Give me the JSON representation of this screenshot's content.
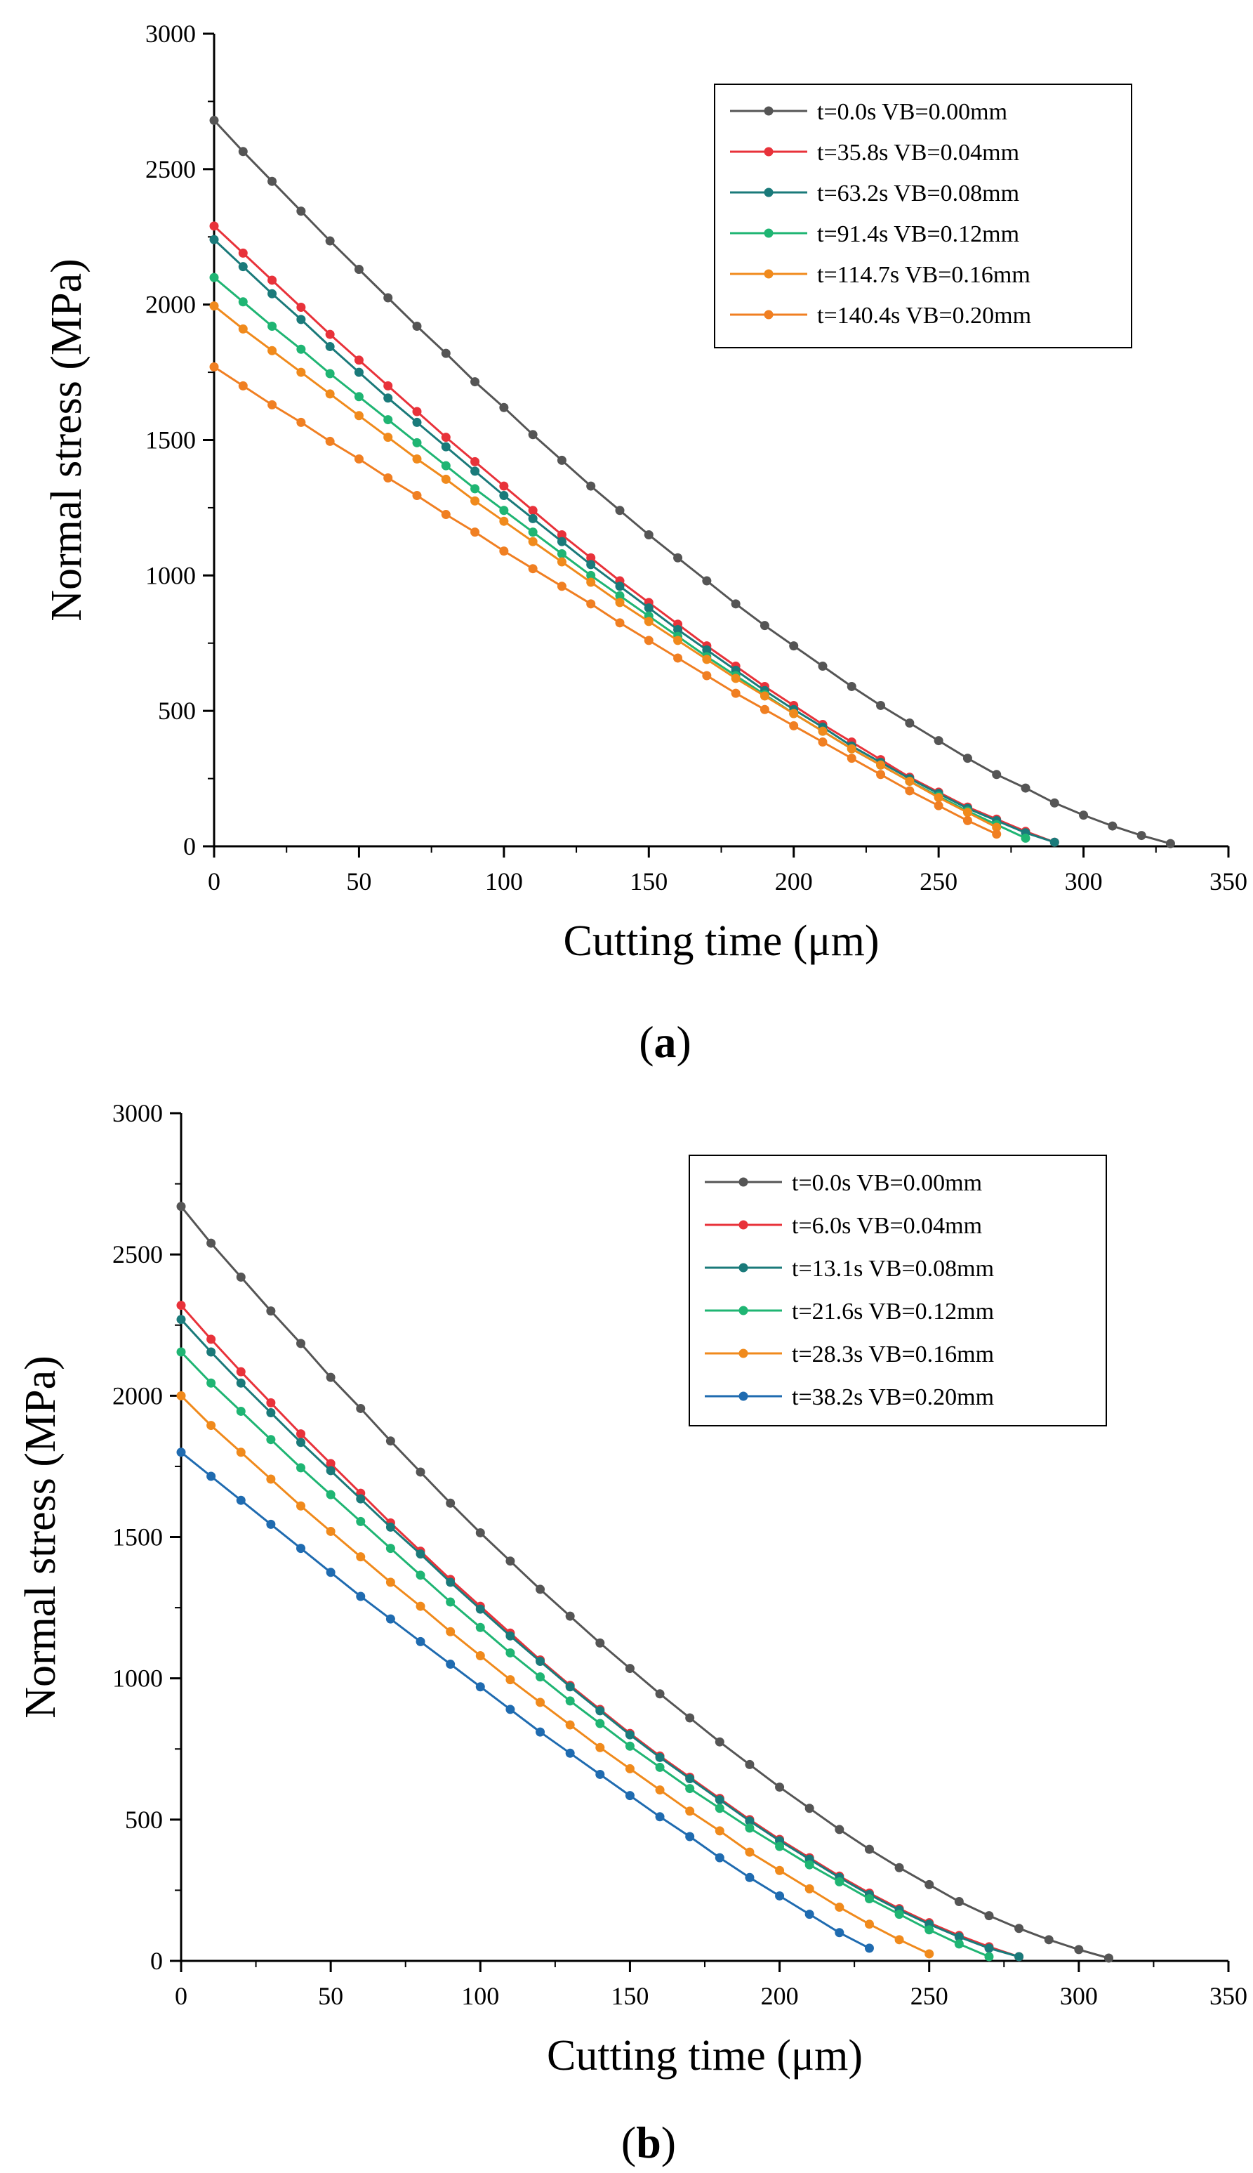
{
  "chart_data": [
    {
      "type": "line",
      "caption_open": "(",
      "caption_letter": "a",
      "caption_close": ")",
      "xlabel": "Cutting time (μm)",
      "ylabel": "Normal stress (MPa)",
      "xlim": [
        0,
        350
      ],
      "ylim": [
        0,
        3000
      ],
      "xticks": [
        0,
        50,
        100,
        150,
        200,
        250,
        300,
        350
      ],
      "yticks": [
        0,
        500,
        1000,
        1500,
        2000,
        2500,
        3000
      ],
      "legend_position": "top-right",
      "series": [
        {
          "name": "t=0.0s VB=0.00mm",
          "color": "#555555",
          "x": [
            0,
            10,
            20,
            30,
            40,
            50,
            60,
            70,
            80,
            90,
            100,
            110,
            120,
            130,
            140,
            150,
            160,
            170,
            180,
            190,
            200,
            210,
            220,
            230,
            240,
            250,
            260,
            270,
            280,
            290,
            300,
            310,
            320,
            330
          ],
          "y": [
            2680,
            2565,
            2455,
            2345,
            2235,
            2130,
            2025,
            1920,
            1820,
            1715,
            1620,
            1520,
            1425,
            1330,
            1240,
            1150,
            1065,
            980,
            895,
            815,
            740,
            665,
            590,
            520,
            455,
            390,
            325,
            265,
            215,
            160,
            115,
            75,
            40,
            10
          ]
        },
        {
          "name": "t=35.8s VB=0.04mm",
          "color": "#e8323a",
          "x": [
            0,
            10,
            20,
            30,
            40,
            50,
            60,
            70,
            80,
            90,
            100,
            110,
            120,
            130,
            140,
            150,
            160,
            170,
            180,
            190,
            200,
            210,
            220,
            230,
            240,
            250,
            260,
            270,
            280,
            290
          ],
          "y": [
            2290,
            2190,
            2090,
            1990,
            1890,
            1795,
            1700,
            1605,
            1510,
            1420,
            1330,
            1240,
            1150,
            1065,
            980,
            900,
            820,
            740,
            665,
            590,
            520,
            450,
            385,
            320,
            255,
            200,
            145,
            100,
            55,
            15
          ]
        },
        {
          "name": "t=63.2s VB=0.08mm",
          "color": "#1a7a7a",
          "x": [
            0,
            10,
            20,
            30,
            40,
            50,
            60,
            70,
            80,
            90,
            100,
            110,
            120,
            130,
            140,
            150,
            160,
            170,
            180,
            190,
            200,
            210,
            220,
            230,
            240,
            250,
            260,
            270,
            280,
            290
          ],
          "y": [
            2240,
            2140,
            2040,
            1945,
            1845,
            1750,
            1655,
            1565,
            1475,
            1385,
            1295,
            1210,
            1125,
            1040,
            960,
            880,
            800,
            725,
            650,
            575,
            505,
            440,
            370,
            310,
            250,
            195,
            140,
            95,
            50,
            15
          ]
        },
        {
          "name": "t=91.4s VB=0.12mm",
          "color": "#1fb573",
          "x": [
            0,
            10,
            20,
            30,
            40,
            50,
            60,
            70,
            80,
            90,
            100,
            110,
            120,
            130,
            140,
            150,
            160,
            170,
            180,
            190,
            200,
            210,
            220,
            230,
            240,
            250,
            260,
            270,
            280
          ],
          "y": [
            2100,
            2010,
            1920,
            1835,
            1745,
            1660,
            1575,
            1490,
            1405,
            1320,
            1240,
            1160,
            1080,
            1000,
            925,
            850,
            775,
            700,
            630,
            560,
            490,
            425,
            360,
            300,
            240,
            185,
            130,
            80,
            30
          ]
        },
        {
          "name": "t=114.7s VB=0.16mm",
          "color": "#f08a1c",
          "x": [
            0,
            10,
            20,
            30,
            40,
            50,
            60,
            70,
            80,
            90,
            100,
            110,
            120,
            130,
            140,
            150,
            160,
            170,
            180,
            190,
            200,
            210,
            220,
            230,
            240,
            250,
            260,
            270
          ],
          "y": [
            1995,
            1910,
            1830,
            1750,
            1670,
            1590,
            1510,
            1430,
            1355,
            1275,
            1200,
            1125,
            1050,
            975,
            900,
            830,
            760,
            690,
            620,
            555,
            490,
            425,
            360,
            300,
            240,
            180,
            125,
            70
          ]
        },
        {
          "name": "t=140.4s VB=0.20mm",
          "color": "#f07f22",
          "x": [
            0,
            10,
            20,
            30,
            40,
            50,
            60,
            70,
            80,
            90,
            100,
            110,
            120,
            130,
            140,
            150,
            160,
            170,
            180,
            190,
            200,
            210,
            220,
            230,
            240,
            250,
            260,
            270
          ],
          "y": [
            1770,
            1700,
            1630,
            1565,
            1495,
            1430,
            1360,
            1295,
            1225,
            1160,
            1090,
            1025,
            960,
            895,
            825,
            760,
            695,
            630,
            565,
            505,
            445,
            385,
            325,
            265,
            205,
            150,
            95,
            45
          ]
        }
      ]
    },
    {
      "type": "line",
      "caption_open": "(",
      "caption_letter": "b",
      "caption_close": ")",
      "xlabel": "Cutting time (μm)",
      "ylabel": "Normal stress (MPa)",
      "xlim": [
        0,
        350
      ],
      "ylim": [
        0,
        3000
      ],
      "xticks": [
        0,
        50,
        100,
        150,
        200,
        250,
        300,
        350
      ],
      "yticks": [
        0,
        500,
        1000,
        1500,
        2000,
        2500,
        3000
      ],
      "legend_position": "top-right",
      "series": [
        {
          "name": "t=0.0s VB=0.00mm",
          "color": "#555555",
          "x": [
            0,
            10,
            20,
            30,
            40,
            50,
            60,
            70,
            80,
            90,
            100,
            110,
            120,
            130,
            140,
            150,
            160,
            170,
            180,
            190,
            200,
            210,
            220,
            230,
            240,
            250,
            260,
            270,
            280,
            290,
            300,
            310
          ],
          "y": [
            2670,
            2540,
            2420,
            2300,
            2185,
            2065,
            1955,
            1840,
            1730,
            1620,
            1515,
            1415,
            1315,
            1220,
            1125,
            1035,
            945,
            860,
            775,
            695,
            615,
            540,
            465,
            395,
            330,
            270,
            210,
            160,
            115,
            75,
            40,
            10
          ]
        },
        {
          "name": "t=6.0s VB=0.04mm",
          "color": "#e8323a",
          "x": [
            0,
            10,
            20,
            30,
            40,
            50,
            60,
            70,
            80,
            90,
            100,
            110,
            120,
            130,
            140,
            150,
            160,
            170,
            180,
            190,
            200,
            210,
            220,
            230,
            240,
            250,
            260,
            270,
            280
          ],
          "y": [
            2320,
            2200,
            2085,
            1975,
            1865,
            1760,
            1655,
            1550,
            1450,
            1350,
            1255,
            1160,
            1065,
            975,
            890,
            805,
            725,
            650,
            575,
            500,
            430,
            365,
            300,
            240,
            185,
            135,
            90,
            50,
            15
          ]
        },
        {
          "name": "t=13.1s VB=0.08mm",
          "color": "#1a7a7a",
          "x": [
            0,
            10,
            20,
            30,
            40,
            50,
            60,
            70,
            80,
            90,
            100,
            110,
            120,
            130,
            140,
            150,
            160,
            170,
            180,
            190,
            200,
            210,
            220,
            230,
            240,
            250,
            260,
            270,
            280
          ],
          "y": [
            2270,
            2155,
            2045,
            1940,
            1835,
            1735,
            1635,
            1535,
            1440,
            1340,
            1245,
            1150,
            1060,
            970,
            885,
            800,
            720,
            645,
            570,
            495,
            425,
            360,
            295,
            235,
            180,
            130,
            85,
            45,
            15
          ]
        },
        {
          "name": "t=21.6s VB=0.12mm",
          "color": "#1fb573",
          "x": [
            0,
            10,
            20,
            30,
            40,
            50,
            60,
            70,
            80,
            90,
            100,
            110,
            120,
            130,
            140,
            150,
            160,
            170,
            180,
            190,
            200,
            210,
            220,
            230,
            240,
            250,
            260,
            270
          ],
          "y": [
            2155,
            2045,
            1945,
            1845,
            1745,
            1650,
            1555,
            1460,
            1365,
            1270,
            1180,
            1090,
            1005,
            920,
            840,
            760,
            685,
            610,
            540,
            470,
            405,
            340,
            280,
            220,
            165,
            110,
            60,
            15
          ]
        },
        {
          "name": "t=28.3s VB=0.16mm",
          "color": "#f08a1c",
          "x": [
            0,
            10,
            20,
            30,
            40,
            50,
            60,
            70,
            80,
            90,
            100,
            110,
            120,
            130,
            140,
            150,
            160,
            170,
            180,
            190,
            200,
            210,
            220,
            230,
            240,
            250
          ],
          "y": [
            2000,
            1895,
            1800,
            1705,
            1610,
            1520,
            1430,
            1340,
            1255,
            1165,
            1080,
            995,
            915,
            835,
            755,
            680,
            605,
            530,
            460,
            385,
            320,
            255,
            190,
            130,
            75,
            25
          ]
        },
        {
          "name": "t=38.2s VB=0.20mm",
          "color": "#1f6bb0",
          "x": [
            0,
            10,
            20,
            30,
            40,
            50,
            60,
            70,
            80,
            90,
            100,
            110,
            120,
            130,
            140,
            150,
            160,
            170,
            180,
            190,
            200,
            210,
            220,
            230
          ],
          "y": [
            1800,
            1715,
            1630,
            1545,
            1460,
            1375,
            1290,
            1210,
            1130,
            1050,
            970,
            890,
            810,
            735,
            660,
            585,
            510,
            440,
            365,
            295,
            230,
            165,
            100,
            45
          ]
        }
      ]
    }
  ]
}
